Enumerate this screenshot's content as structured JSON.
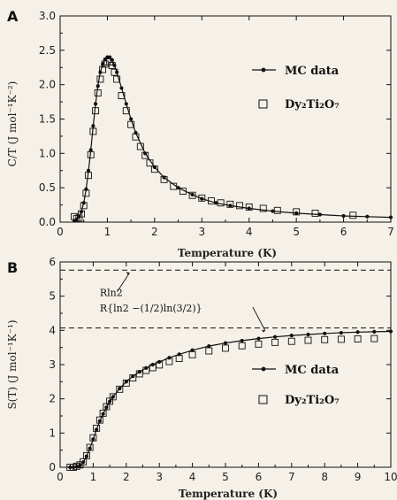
{
  "chart_data": [
    {
      "panel": "A",
      "type": "line",
      "xlabel": "Temperature (K)",
      "ylabel": "C/T (J mol⁻¹K⁻²)",
      "xlim": [
        0,
        7
      ],
      "ylim": [
        0,
        3.0
      ],
      "xticks": [
        "0",
        "1",
        "2",
        "3",
        "4",
        "5",
        "6",
        "7"
      ],
      "yticks": [
        "0.0",
        "0.5",
        "1.0",
        "1.5",
        "2.0",
        "2.5",
        "3.0"
      ],
      "legend_position": "right",
      "series": [
        {
          "name": "MC data",
          "marker": "dot-line",
          "x": [
            0.3,
            0.35,
            0.4,
            0.45,
            0.5,
            0.55,
            0.6,
            0.65,
            0.7,
            0.75,
            0.8,
            0.85,
            0.9,
            0.95,
            1.0,
            1.05,
            1.1,
            1.15,
            1.2,
            1.3,
            1.4,
            1.5,
            1.6,
            1.8,
            2.0,
            2.2,
            2.5,
            2.8,
            3.0,
            3.3,
            3.6,
            4.0,
            4.5,
            5.0,
            5.5,
            6.0,
            6.5,
            7.0
          ],
          "y": [
            0.02,
            0.04,
            0.08,
            0.15,
            0.28,
            0.48,
            0.75,
            1.05,
            1.4,
            1.72,
            1.98,
            2.18,
            2.3,
            2.37,
            2.4,
            2.4,
            2.36,
            2.28,
            2.18,
            1.95,
            1.72,
            1.5,
            1.3,
            1.0,
            0.8,
            0.65,
            0.5,
            0.4,
            0.34,
            0.28,
            0.24,
            0.2,
            0.16,
            0.13,
            0.11,
            0.09,
            0.08,
            0.07
          ]
        },
        {
          "name": "Dy₂Ti₂O₇",
          "marker": "open-square",
          "x": [
            0.3,
            0.35,
            0.4,
            0.45,
            0.5,
            0.55,
            0.6,
            0.65,
            0.7,
            0.75,
            0.8,
            0.85,
            0.9,
            0.95,
            1.0,
            1.05,
            1.1,
            1.15,
            1.2,
            1.3,
            1.4,
            1.5,
            1.6,
            1.7,
            1.8,
            1.9,
            2.0,
            2.2,
            2.4,
            2.6,
            2.8,
            3.0,
            3.2,
            3.4,
            3.6,
            3.8,
            4.0,
            4.3,
            4.6,
            5.0,
            5.4,
            6.2
          ],
          "y": [
            0.08,
            0.05,
            0.06,
            0.12,
            0.24,
            0.42,
            0.68,
            0.98,
            1.32,
            1.62,
            1.88,
            2.08,
            2.22,
            2.3,
            2.33,
            2.33,
            2.28,
            2.18,
            2.08,
            1.84,
            1.62,
            1.42,
            1.24,
            1.1,
            0.97,
            0.86,
            0.77,
            0.62,
            0.52,
            0.45,
            0.39,
            0.35,
            0.31,
            0.28,
            0.26,
            0.24,
            0.22,
            0.2,
            0.17,
            0.15,
            0.13,
            0.1
          ]
        }
      ]
    },
    {
      "panel": "B",
      "type": "line",
      "xlabel": "Temperature (K)",
      "ylabel": "S(T) (J mol⁻¹K⁻¹)",
      "xlim": [
        0,
        10
      ],
      "ylim": [
        0,
        6
      ],
      "xticks": [
        "0",
        "1",
        "2",
        "3",
        "4",
        "5",
        "6",
        "7",
        "8",
        "9",
        "10"
      ],
      "yticks": [
        "0",
        "1",
        "2",
        "3",
        "4",
        "5",
        "6"
      ],
      "legend_position": "right",
      "reference_lines": [
        {
          "y": 5.76,
          "label": "Rln2",
          "label_x": 1.2,
          "label_y": 5.0,
          "arrow_to_x": 2.1
        },
        {
          "y": 4.07,
          "label": "R{ln2 −(1/2)ln(3/2)}",
          "label_x": 1.2,
          "label_y": 4.55,
          "arrow_to_x": 6.2
        }
      ],
      "series": [
        {
          "name": "MC data",
          "marker": "dot-line",
          "x": [
            0.3,
            0.4,
            0.5,
            0.6,
            0.7,
            0.8,
            0.9,
            1.0,
            1.1,
            1.2,
            1.3,
            1.4,
            1.5,
            1.6,
            1.8,
            2.0,
            2.2,
            2.4,
            2.6,
            2.8,
            3.0,
            3.3,
            3.6,
            4.0,
            4.5,
            5.0,
            5.5,
            6.0,
            6.5,
            7.0,
            7.5,
            8.0,
            8.5,
            9.0,
            9.5,
            10.0
          ],
          "y": [
            0.0,
            0.0,
            0.02,
            0.06,
            0.15,
            0.32,
            0.55,
            0.82,
            1.1,
            1.35,
            1.56,
            1.75,
            1.92,
            2.06,
            2.3,
            2.5,
            2.66,
            2.79,
            2.9,
            3.0,
            3.08,
            3.2,
            3.3,
            3.42,
            3.54,
            3.63,
            3.7,
            3.76,
            3.81,
            3.85,
            3.88,
            3.91,
            3.93,
            3.95,
            3.96,
            3.97
          ]
        },
        {
          "name": "Dy₂Ti₂O₇",
          "marker": "open-square",
          "x": [
            0.3,
            0.4,
            0.5,
            0.6,
            0.7,
            0.8,
            0.9,
            1.0,
            1.1,
            1.2,
            1.3,
            1.4,
            1.5,
            1.6,
            1.8,
            2.0,
            2.2,
            2.4,
            2.6,
            2.8,
            3.0,
            3.3,
            3.6,
            4.0,
            4.5,
            5.0,
            5.5,
            6.0,
            6.5,
            7.0,
            7.5,
            8.0,
            8.5,
            9.0,
            9.5
          ],
          "y": [
            0.0,
            0.0,
            0.03,
            0.07,
            0.16,
            0.34,
            0.58,
            0.86,
            1.14,
            1.38,
            1.58,
            1.77,
            1.93,
            2.06,
            2.28,
            2.46,
            2.61,
            2.73,
            2.83,
            2.91,
            2.99,
            3.09,
            3.18,
            3.29,
            3.4,
            3.48,
            3.55,
            3.6,
            3.65,
            3.68,
            3.71,
            3.73,
            3.74,
            3.75,
            3.76
          ]
        }
      ]
    }
  ],
  "colors": {
    "background": "#f5f0e8",
    "ink": "#111111"
  }
}
